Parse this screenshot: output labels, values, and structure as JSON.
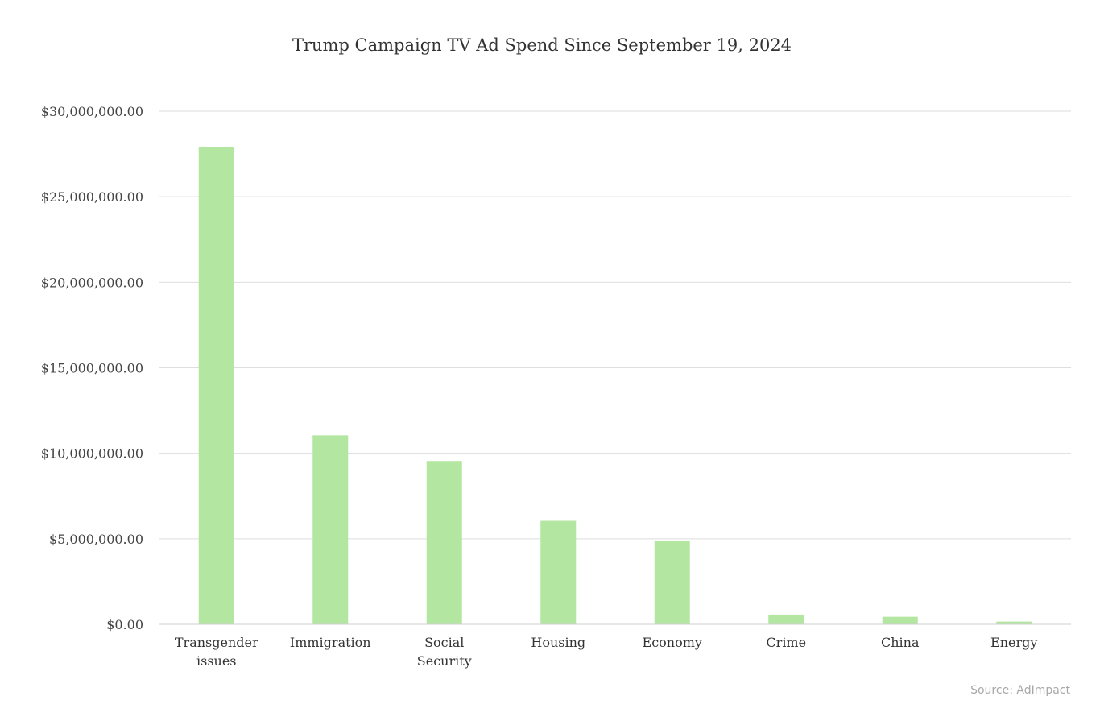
{
  "chart_data": {
    "type": "bar",
    "title": "Trump Campaign TV Ad Spend Since September 19, 2024",
    "xlabel": "",
    "ylabel": "",
    "categories": [
      "Transgender issues",
      "Immigration",
      "Social Security",
      "Housing",
      "Economy",
      "Crime",
      "China",
      "Energy"
    ],
    "values": [
      27900000,
      11050000,
      9550000,
      6050000,
      4900000,
      570000,
      440000,
      160000
    ],
    "yticks": [
      0,
      5000000,
      10000000,
      15000000,
      20000000,
      25000000,
      30000000
    ],
    "ytick_labels": [
      "$0.00",
      "$5,000,000.00",
      "$10,000,000.00",
      "$15,000,000.00",
      "$20,000,000.00",
      "$25,000,000.00",
      "$30,000,000.00"
    ],
    "ylim": [
      0,
      30000000
    ],
    "grid": true,
    "legend": "none",
    "bar_color": "#b3e6a0",
    "source": "Source: AdImpact"
  }
}
